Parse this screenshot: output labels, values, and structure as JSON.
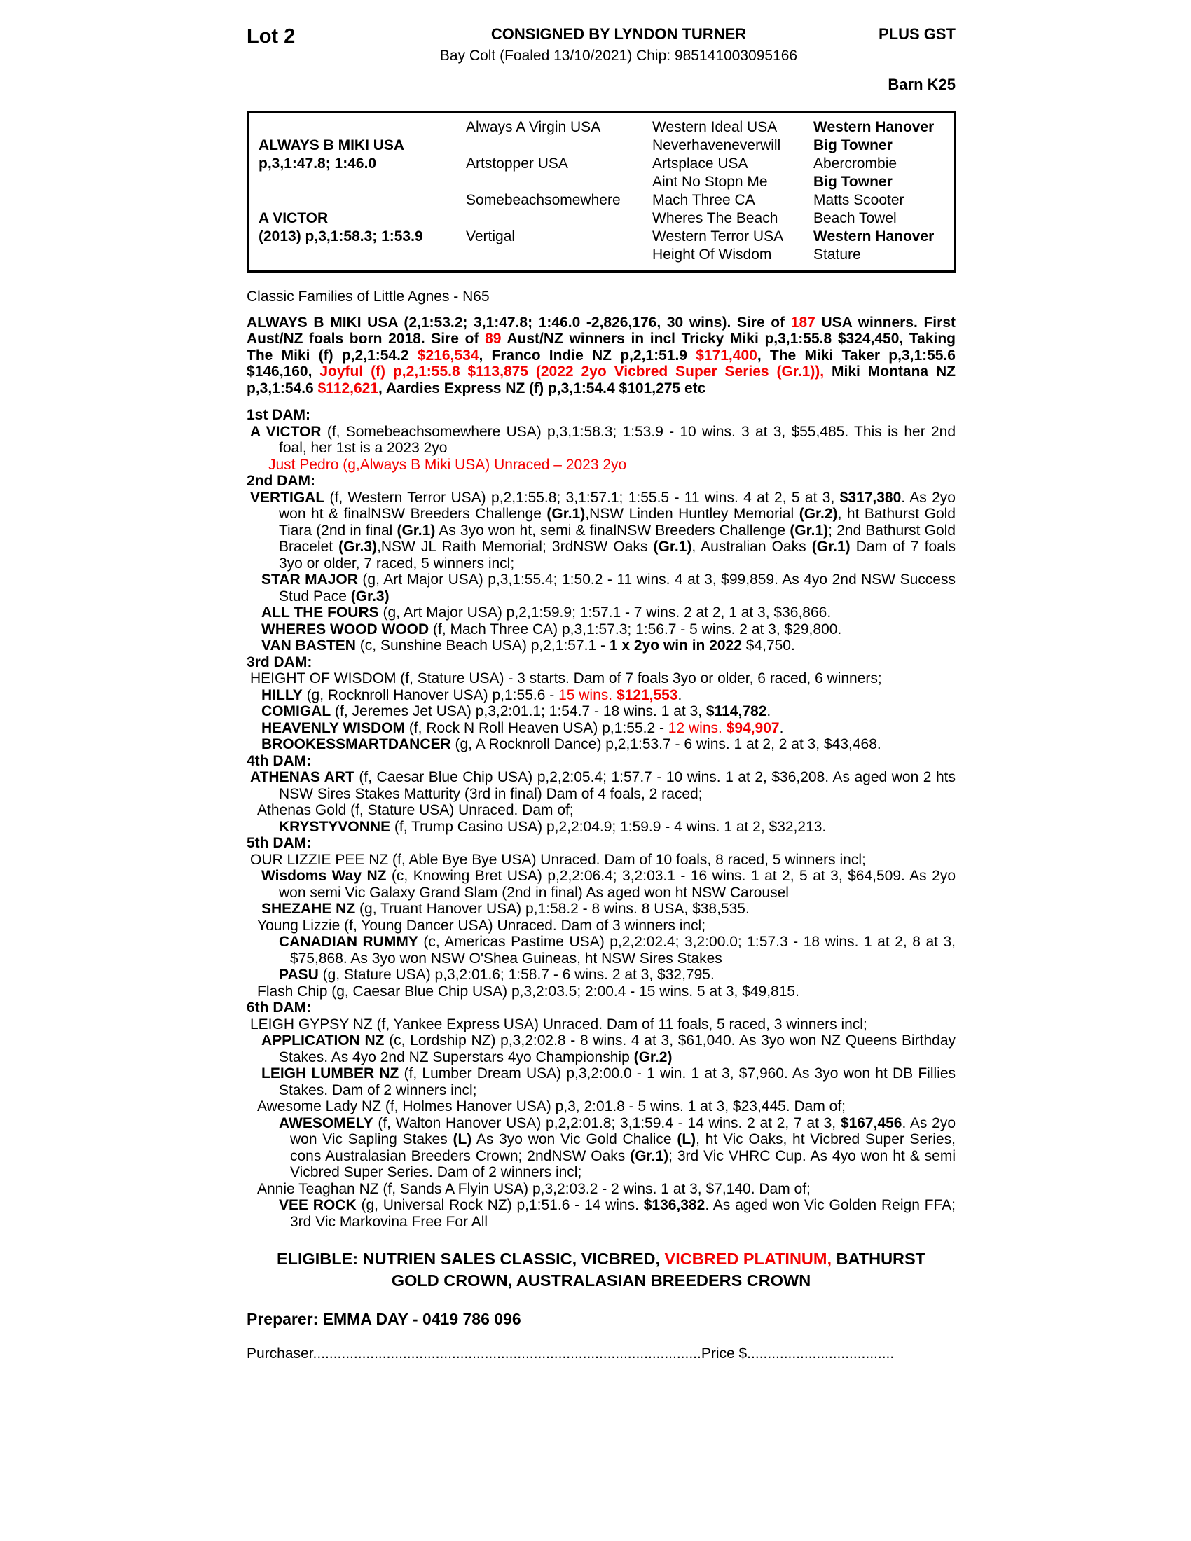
{
  "colors": {
    "red": "#f20000",
    "text": "#000000",
    "background": "#ffffff"
  },
  "header": {
    "lot": "Lot 2",
    "consigned": "CONSIGNED BY LYNDON TURNER",
    "description": "Bay Colt (Foaled 13/10/2021) Chip: 985141003095166",
    "plus_gst": "PLUS GST",
    "barn": "Barn K25"
  },
  "pedigree_table": {
    "cells": [
      {
        "r": 2,
        "c": 1,
        "b": true,
        "t": "ALWAYS B MIKI USA"
      },
      {
        "r": 3,
        "c": 1,
        "b": true,
        "t": "p,3,1:47.8; 1:46.0"
      },
      {
        "r": 6,
        "c": 1,
        "b": true,
        "t": "A VICTOR"
      },
      {
        "r": 7,
        "c": 1,
        "b": true,
        "t": "(2013) p,3,1:58.3; 1:53.9"
      },
      {
        "r": 1,
        "c": 2,
        "b": false,
        "t": "Always A Virgin USA"
      },
      {
        "r": 3,
        "c": 2,
        "b": false,
        "t": "Artstopper USA"
      },
      {
        "r": 5,
        "c": 2,
        "b": false,
        "t": "Somebeachsomewhere"
      },
      {
        "r": 7,
        "c": 2,
        "b": false,
        "t": "Vertigal"
      },
      {
        "r": 1,
        "c": 3,
        "b": false,
        "t": "Western Ideal USA"
      },
      {
        "r": 2,
        "c": 3,
        "b": false,
        "t": "Neverhaveneverwill"
      },
      {
        "r": 3,
        "c": 3,
        "b": false,
        "t": "Artsplace USA"
      },
      {
        "r": 4,
        "c": 3,
        "b": false,
        "t": "Aint No Stopn Me"
      },
      {
        "r": 5,
        "c": 3,
        "b": false,
        "t": "Mach Three CA"
      },
      {
        "r": 6,
        "c": 3,
        "b": false,
        "t": "Wheres The Beach"
      },
      {
        "r": 7,
        "c": 3,
        "b": false,
        "t": "Western Terror USA"
      },
      {
        "r": 8,
        "c": 3,
        "b": false,
        "t": "Height Of Wisdom"
      },
      {
        "r": 1,
        "c": 4,
        "b": true,
        "t": "Western Hanover"
      },
      {
        "r": 2,
        "c": 4,
        "b": true,
        "t": "Big Towner"
      },
      {
        "r": 3,
        "c": 4,
        "b": false,
        "t": "Abercrombie"
      },
      {
        "r": 4,
        "c": 4,
        "b": true,
        "t": "Big Towner"
      },
      {
        "r": 5,
        "c": 4,
        "b": false,
        "t": "Matts Scooter"
      },
      {
        "r": 6,
        "c": 4,
        "b": false,
        "t": "Beach Towel"
      },
      {
        "r": 7,
        "c": 4,
        "b": true,
        "t": "Western Hanover"
      },
      {
        "r": 8,
        "c": 4,
        "b": false,
        "t": "Stature"
      }
    ]
  },
  "body": {
    "paragraphs": [
      {
        "name": "family-note",
        "cls": "plain",
        "seg": [
          {
            "t": "Classic Families of Little Agnes - N65",
            "s": ""
          }
        ]
      },
      {
        "name": "sire-summary",
        "cls": "sire",
        "seg": [
          {
            "t": "ALWAYS B MIKI USA (2,1:53.2; 3,1:47.8; 1:46.0 -2,826,176, 30 wins). Sire of ",
            "s": ""
          },
          {
            "t": "187",
            "s": "r"
          },
          {
            "t": " USA winners. First Aust/NZ foals born 2018. Sire of ",
            "s": ""
          },
          {
            "t": "89",
            "s": "r"
          },
          {
            "t": " Aust/NZ winners in incl Tricky Miki p,3,1:55.8 $324,450, Taking The Miki (f) p,2,1:54.2 ",
            "s": ""
          },
          {
            "t": "$216,534",
            "s": "r"
          },
          {
            "t": ", Franco Indie NZ p,2,1:51.9 ",
            "s": ""
          },
          {
            "t": "$171,400",
            "s": "r"
          },
          {
            "t": ", The Miki Taker p,3,1:55.6 $146,160, ",
            "s": ""
          },
          {
            "t": "Joyful (f) p,2,1:55.8 $113,875 (2022 2yo Vicbred Super Series (Gr.1)),",
            "s": "r"
          },
          {
            "t": " Miki Montana NZ p,3,1:54.6 ",
            "s": ""
          },
          {
            "t": "$112,621",
            "s": "r"
          },
          {
            "t": ", Aardies Express NZ (f) p,3,1:54.4 $101,275 etc",
            "s": ""
          }
        ]
      },
      {
        "name": "dam1-heading",
        "cls": "sh mt",
        "seg": [
          {
            "t": "1st DAM:",
            "s": ""
          }
        ]
      },
      {
        "name": "entry-a-victor",
        "cls": "e1",
        "seg": [
          {
            "t": "A VICTOR",
            "s": "b"
          },
          {
            "t": " (f, Somebeachsomewhere USA) p,3,1:58.3; 1:53.9 - 10 wins. 3 at 3, $55,485. This is her 2nd foal, her 1st is a 2023 2yo",
            "s": ""
          }
        ]
      },
      {
        "name": "entry-just-pedro",
        "cls": "ejp",
        "seg": [
          {
            "t": "Just Pedro (g,Always B Miki USA) Unraced – 2023 2yo",
            "s": "r"
          }
        ]
      },
      {
        "name": "dam2-heading",
        "cls": "sh",
        "seg": [
          {
            "t": "2nd DAM:",
            "s": ""
          }
        ]
      },
      {
        "name": "entry-vertigal",
        "cls": "e1",
        "seg": [
          {
            "t": "VERTIGAL",
            "s": "b"
          },
          {
            "t": " (f, Western Terror USA) p,2,1:55.8; 3,1:57.1; 1:55.5 - 11 wins. 4 at 2, 5 at 3, ",
            "s": ""
          },
          {
            "t": "$317,380",
            "s": "b"
          },
          {
            "t": ". As 2yo won ht & finalNSW Breeders Challenge ",
            "s": ""
          },
          {
            "t": "(Gr.1)",
            "s": "b"
          },
          {
            "t": ",NSW Linden Huntley Memorial ",
            "s": ""
          },
          {
            "t": "(Gr.2)",
            "s": "b"
          },
          {
            "t": ", ht Bathurst Gold Tiara (2nd in final ",
            "s": ""
          },
          {
            "t": "(Gr.1)",
            "s": "b"
          },
          {
            "t": " As 3yo won ht, semi & finalNSW Breeders Challenge ",
            "s": ""
          },
          {
            "t": "(Gr.1)",
            "s": "b"
          },
          {
            "t": "; 2nd Bathurst Gold Bracelet ",
            "s": ""
          },
          {
            "t": "(Gr.3)",
            "s": "b"
          },
          {
            "t": ",NSW JL Raith Memorial; 3rdNSW Oaks ",
            "s": ""
          },
          {
            "t": "(Gr.1)",
            "s": "b"
          },
          {
            "t": ", Australian Oaks ",
            "s": ""
          },
          {
            "t": "(Gr.1)",
            "s": "b"
          },
          {
            "t": " Dam of 7 foals 3yo or older, 7 raced, 5 winners incl;",
            "s": ""
          }
        ]
      },
      {
        "name": "entry-star-major",
        "cls": "e2",
        "seg": [
          {
            "t": "STAR MAJOR",
            "s": "b"
          },
          {
            "t": " (g, Art Major USA) p,3,1:55.4; 1:50.2 - 11 wins. 4 at 3, $99,859. As 4yo 2nd NSW Success Stud Pace ",
            "s": ""
          },
          {
            "t": "(Gr.3)",
            "s": "b"
          }
        ]
      },
      {
        "name": "entry-all-the-fours",
        "cls": "e2",
        "seg": [
          {
            "t": "ALL THE FOURS",
            "s": "b"
          },
          {
            "t": " (g, Art Major USA) p,2,1:59.9; 1:57.1 - 7 wins. 2 at 2, 1 at 3, $36,866.",
            "s": ""
          }
        ]
      },
      {
        "name": "entry-wheres-wood-wood",
        "cls": "e2",
        "seg": [
          {
            "t": "WHERES WOOD WOOD",
            "s": "b"
          },
          {
            "t": " (f, Mach Three CA) p,3,1:57.3; 1:56.7 - 5 wins. 2 at 3, $29,800.",
            "s": ""
          }
        ]
      },
      {
        "name": "entry-van-basten",
        "cls": "e2",
        "seg": [
          {
            "t": "VAN BASTEN",
            "s": "b"
          },
          {
            "t": " (c, Sunshine Beach USA) p,2,1:57.1 - ",
            "s": ""
          },
          {
            "t": "1 x 2yo win in 2022",
            "s": "b"
          },
          {
            "t": " $4,750.",
            "s": ""
          }
        ]
      },
      {
        "name": "dam3-heading",
        "cls": "sh",
        "seg": [
          {
            "t": "3rd DAM:",
            "s": ""
          }
        ]
      },
      {
        "name": "entry-height-of-wisdom",
        "cls": "e1",
        "seg": [
          {
            "t": "HEIGHT OF WISDOM (f, Stature USA) - 3 starts. Dam of 7 foals 3yo or older, 6 raced, 6 winners;",
            "s": ""
          }
        ]
      },
      {
        "name": "entry-hilly",
        "cls": "e2",
        "seg": [
          {
            "t": "HILLY",
            "s": "b"
          },
          {
            "t": " (g, Rocknroll Hanover USA) p,1:55.6 - ",
            "s": ""
          },
          {
            "t": "15 wins. ",
            "s": "r"
          },
          {
            "t": "$121,553",
            "s": "br"
          },
          {
            "t": ".",
            "s": ""
          }
        ]
      },
      {
        "name": "entry-comigal",
        "cls": "e2",
        "seg": [
          {
            "t": "COMIGAL",
            "s": "b"
          },
          {
            "t": " (f, Jeremes Jet USA) p,3,2:01.1; 1:54.7 - 18 wins. 1 at 3, ",
            "s": ""
          },
          {
            "t": "$114,782",
            "s": "b"
          },
          {
            "t": ".",
            "s": ""
          }
        ]
      },
      {
        "name": "entry-heavenly-wisdom",
        "cls": "e2",
        "seg": [
          {
            "t": "HEAVENLY WISDOM",
            "s": "b"
          },
          {
            "t": " (f, Rock N Roll Heaven USA) p,1:55.2 - ",
            "s": ""
          },
          {
            "t": "12 wins. ",
            "s": "r"
          },
          {
            "t": "$94,907",
            "s": "br"
          },
          {
            "t": ".",
            "s": ""
          }
        ]
      },
      {
        "name": "entry-brookessmartdancer",
        "cls": "e2",
        "seg": [
          {
            "t": "BROOKESSMARTDANCER",
            "s": "b"
          },
          {
            "t": " (g, A Rocknroll Dance) p,2,1:53.7 - 6 wins. 1 at 2, 2 at 3, $43,468.",
            "s": ""
          }
        ]
      },
      {
        "name": "dam4-heading",
        "cls": "sh",
        "seg": [
          {
            "t": "4th DAM:",
            "s": ""
          }
        ]
      },
      {
        "name": "entry-athenas-art",
        "cls": "e1",
        "seg": [
          {
            "t": "ATHENAS ART",
            "s": "b"
          },
          {
            "t": " (f, Caesar Blue Chip USA) p,2,2:05.4; 1:57.7 - 10 wins. 1 at 2, $36,208. As aged won 2 hts NSW Sires Stakes Matturity (3rd in final) Dam of 4 foals, 2 raced;",
            "s": ""
          }
        ]
      },
      {
        "name": "entry-athenas-gold",
        "cls": "e2p",
        "seg": [
          {
            "t": "Athenas Gold (f, Stature USA) Unraced. Dam of;",
            "s": ""
          }
        ]
      },
      {
        "name": "entry-krystyvonne",
        "cls": "e3",
        "seg": [
          {
            "t": "KRYSTYVONNE",
            "s": "b"
          },
          {
            "t": " (f, Trump Casino USA) p,2,2:04.9; 1:59.9 - 4 wins. 1 at 2, $32,213.",
            "s": ""
          }
        ]
      },
      {
        "name": "dam5-heading",
        "cls": "sh",
        "seg": [
          {
            "t": "5th DAM:",
            "s": ""
          }
        ]
      },
      {
        "name": "entry-our-lizzie-pee",
        "cls": "e1",
        "seg": [
          {
            "t": "OUR LIZZIE PEE NZ (f, Able Bye Bye USA) Unraced. Dam of 10 foals, 8 raced, 5 winners incl;",
            "s": ""
          }
        ]
      },
      {
        "name": "entry-wisdoms-way",
        "cls": "e2",
        "seg": [
          {
            "t": "Wisdoms Way NZ",
            "s": "b"
          },
          {
            "t": " (c, Knowing Bret USA) p,2,2:06.4; 3,2:03.1 - 16 wins. 1 at 2, 5 at 3, $64,509. As 2yo won semi Vic Galaxy Grand Slam (2nd in final) As aged won ht NSW Carousel",
            "s": ""
          }
        ]
      },
      {
        "name": "entry-shezahe",
        "cls": "e2",
        "seg": [
          {
            "t": "SHEZAHE NZ",
            "s": "b"
          },
          {
            "t": " (g, Truant Hanover USA) p,1:58.2 - 8 wins. 8 USA, $38,535.",
            "s": ""
          }
        ]
      },
      {
        "name": "entry-young-lizzie",
        "cls": "e2p",
        "seg": [
          {
            "t": "Young Lizzie (f, Young Dancer USA) Unraced. Dam of 3 winners incl;",
            "s": ""
          }
        ]
      },
      {
        "name": "entry-canadian-rummy",
        "cls": "e3",
        "seg": [
          {
            "t": "CANADIAN RUMMY",
            "s": "b"
          },
          {
            "t": " (c, Americas Pastime USA) p,2,2:02.4; 3,2:00.0; 1:57.3 - 18 wins. 1 at 2, 8 at 3, $75,868. As 3yo won NSW O'Shea Guineas, ht NSW Sires Stakes",
            "s": ""
          }
        ]
      },
      {
        "name": "entry-pasu",
        "cls": "e3",
        "seg": [
          {
            "t": "PASU",
            "s": "b"
          },
          {
            "t": " (g, Stature USA) p,3,2:01.6; 1:58.7 - 6 wins. 2 at 3, $32,795.",
            "s": ""
          }
        ]
      },
      {
        "name": "entry-flash-chip",
        "cls": "e2p",
        "seg": [
          {
            "t": "Flash Chip (g, Caesar Blue Chip USA) p,3,2:03.5; 2:00.4 - 15 wins. 5 at 3, $49,815.",
            "s": ""
          }
        ]
      },
      {
        "name": "dam6-heading",
        "cls": "sh",
        "seg": [
          {
            "t": "6th DAM:",
            "s": ""
          }
        ]
      },
      {
        "name": "entry-leigh-gypsy",
        "cls": "e1",
        "seg": [
          {
            "t": "LEIGH GYPSY NZ (f, Yankee Express USA) Unraced. Dam of 11 foals, 5 raced, 3 winners incl;",
            "s": ""
          }
        ]
      },
      {
        "name": "entry-application",
        "cls": "e2",
        "seg": [
          {
            "t": "APPLICATION NZ",
            "s": "b"
          },
          {
            "t": " (c, Lordship NZ) p,3,2:02.8 - 8 wins. 4 at 3, $61,040. As 3yo won NZ Queens Birthday Stakes. As 4yo 2nd NZ Superstars 4yo Championship ",
            "s": ""
          },
          {
            "t": "(Gr.2)",
            "s": "b"
          }
        ]
      },
      {
        "name": "entry-leigh-lumber",
        "cls": "e2",
        "seg": [
          {
            "t": "LEIGH LUMBER NZ",
            "s": "b"
          },
          {
            "t": " (f, Lumber Dream USA) p,3,2:00.0 - 1 win. 1 at 3, $7,960. As 3yo won ht DB Fillies Stakes. Dam of 2 winners incl;",
            "s": ""
          }
        ]
      },
      {
        "name": "entry-awesome-lady",
        "cls": "e2p",
        "seg": [
          {
            "t": "Awesome Lady NZ (f, Holmes Hanover USA) p,3, 2:01.8 - 5 wins. 1 at 3, $23,445. Dam of;",
            "s": ""
          }
        ]
      },
      {
        "name": "entry-awesomely",
        "cls": "e3",
        "seg": [
          {
            "t": "AWESOMELY",
            "s": "b"
          },
          {
            "t": " (f, Walton Hanover USA) p,2,2:01.8; 3,1:59.4 - 14 wins. 2 at 2, 7 at 3, ",
            "s": ""
          },
          {
            "t": "$167,456",
            "s": "b"
          },
          {
            "t": ". As 2yo won Vic Sapling Stakes ",
            "s": ""
          },
          {
            "t": "(L)",
            "s": "b"
          },
          {
            "t": " As 3yo won Vic Gold Chalice ",
            "s": ""
          },
          {
            "t": "(L)",
            "s": "b"
          },
          {
            "t": ", ht Vic Oaks, ht Vicbred Super Series, cons Australasian Breeders Crown; 2ndNSW Oaks ",
            "s": ""
          },
          {
            "t": "(Gr.1)",
            "s": "b"
          },
          {
            "t": "; 3rd Vic VHRC Cup. As 4yo won ht & semi Vicbred Super Series. Dam of 2 winners incl;",
            "s": ""
          }
        ]
      },
      {
        "name": "entry-annie-teaghan",
        "cls": "e2p",
        "seg": [
          {
            "t": "Annie Teaghan NZ (f, Sands A Flyin USA) p,3,2:03.2 - 2 wins. 1 at 3, $7,140. Dam of;",
            "s": ""
          }
        ]
      },
      {
        "name": "entry-vee-rock",
        "cls": "e3",
        "seg": [
          {
            "t": "VEE ROCK",
            "s": "b"
          },
          {
            "t": " (g, Universal Rock NZ) p,1:51.6 - 14 wins. ",
            "s": ""
          },
          {
            "t": "$136,382",
            "s": "b"
          },
          {
            "t": ". As aged won Vic Golden Reign FFA; 3rd Vic Markovina Free For All",
            "s": ""
          }
        ]
      }
    ]
  },
  "eligible": {
    "lines": [
      [
        {
          "t": "ELIGIBLE: NUTRIEN SALES CLASSIC, VICBRED, ",
          "s": ""
        },
        {
          "t": "VICBRED PLATINUM,",
          "s": "r"
        },
        {
          "t": " BATHURST",
          "s": ""
        }
      ],
      [
        {
          "t": "GOLD CROWN, AUSTRALASIAN BREEDERS CROWN",
          "s": ""
        }
      ]
    ]
  },
  "footer": {
    "preparer": "Preparer: EMMA DAY - 0419 786 096",
    "purchaser": "Purchaser...............................................................................................Price $...................................."
  }
}
